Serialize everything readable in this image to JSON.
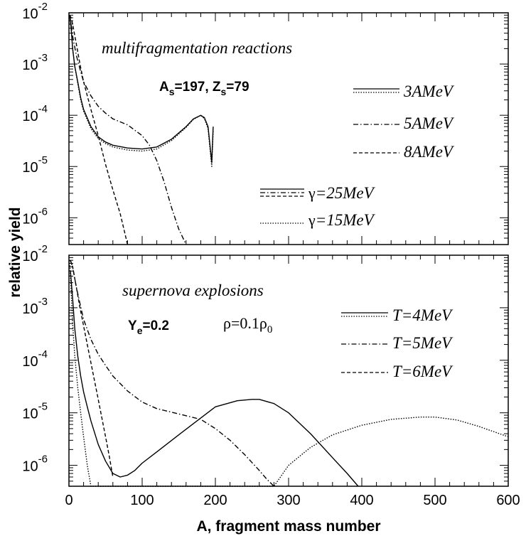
{
  "chart_data": [
    {
      "type": "line",
      "panel": "top",
      "title": "multifragmentation reactions",
      "annotation": {
        "base": "A",
        "sub": "s",
        "mid": "=197, Z",
        "sub2": "s",
        "end": "=79"
      },
      "xlim": [
        0,
        600
      ],
      "ylim": [
        3e-07,
        0.01
      ],
      "yscale": "log",
      "legend": {
        "energies": [
          "3AMeV",
          "5AMeV",
          "8AMeV"
        ],
        "gamma_prefix": "γ",
        "gammas": [
          "=25MeV",
          "=15MeV"
        ]
      },
      "series": [
        {
          "style": "solid",
          "x": [
            1,
            3,
            5,
            8,
            12,
            16,
            20,
            30,
            40,
            50,
            60,
            80,
            100,
            120,
            140,
            160,
            170,
            180,
            185,
            190,
            195,
            197
          ],
          "y": [
            0.009,
            0.005,
            0.002,
            0.0009,
            0.00045,
            0.00022,
            0.00013,
            6e-05,
            3.8e-05,
            3e-05,
            2.6e-05,
            2.3e-05,
            2.2e-05,
            2.4e-05,
            3.4e-05,
            6e-05,
            8.5e-05,
            0.0001,
            9e-05,
            6e-05,
            1.2e-05,
            6e-05
          ]
        },
        {
          "style": "dotted",
          "x": [
            1,
            3,
            5,
            8,
            12,
            16,
            20,
            30,
            40,
            50,
            60,
            80,
            100,
            120,
            140,
            160,
            170,
            180,
            185,
            190,
            195,
            197
          ],
          "y": [
            0.009,
            0.005,
            0.002,
            0.0009,
            0.00042,
            0.0002,
            0.00012,
            5.5e-05,
            3.5e-05,
            2.8e-05,
            2.4e-05,
            2.1e-05,
            2e-05,
            2.2e-05,
            3.2e-05,
            5.8e-05,
            8.3e-05,
            0.0001,
            8.5e-05,
            5.5e-05,
            1e-05,
            5e-05
          ]
        },
        {
          "style": "dashdot",
          "x": [
            1,
            3,
            5,
            10,
            15,
            20,
            30,
            40,
            50,
            60,
            80,
            100,
            110,
            120,
            130,
            140,
            150,
            160
          ],
          "y": [
            0.009,
            0.006,
            0.0035,
            0.0015,
            0.0008,
            0.00045,
            0.00024,
            0.00015,
            0.00011,
            8.5e-05,
            6.5e-05,
            4e-05,
            2.6e-05,
            1.3e-05,
            5e-06,
            1.6e-06,
            6e-07,
            3e-07
          ]
        },
        {
          "style": "dashed",
          "x": [
            1,
            3,
            5,
            10,
            15,
            20,
            30,
            40,
            50,
            60,
            70,
            75,
            80
          ],
          "y": [
            0.009,
            0.008,
            0.006,
            0.0025,
            0.001,
            0.00045,
            0.00013,
            4e-05,
            1.1e-05,
            3.5e-06,
            1.2e-06,
            6e-07,
            3e-07
          ]
        }
      ]
    },
    {
      "type": "line",
      "panel": "bottom",
      "title": "supernova explosions",
      "annotation": {
        "ye_base": "Y",
        "ye_sub": "e",
        "ye_val": "=0.2",
        "rho": "ρ=0.1ρ",
        "rho_sub": "0"
      },
      "xlim": [
        0,
        600
      ],
      "ylim": [
        4e-07,
        0.01
      ],
      "yscale": "log",
      "legend": [
        "T=4MeV",
        "T=5MeV",
        "T=6MeV"
      ],
      "series": [
        {
          "style": "solid",
          "x": [
            2,
            5,
            8,
            12,
            16,
            20,
            25,
            30,
            40,
            50,
            60,
            70,
            80,
            90,
            100,
            120,
            150,
            200,
            230,
            250,
            260,
            280,
            300,
            330,
            360,
            380,
            395
          ],
          "y": [
            0.005,
            0.0015,
            0.0004,
            0.00012,
            5e-05,
            2.5e-05,
            1.3e-05,
            7e-06,
            2.5e-06,
            1.2e-06,
            7e-07,
            6e-07,
            6.5e-07,
            8e-07,
            1.1e-06,
            1.8e-06,
            3.8e-06,
            1.3e-05,
            1.7e-05,
            1.8e-05,
            1.8e-05,
            1.5e-05,
            1e-05,
            4e-06,
            1.4e-06,
            7e-07,
            4e-07
          ]
        },
        {
          "style": "dotted",
          "x": [
            1,
            3,
            5,
            8,
            12,
            16,
            20,
            25,
            30,
            280,
            300,
            330,
            360,
            400,
            440,
            480,
            500,
            530,
            560,
            600
          ],
          "y": [
            0.008,
            0.002,
            0.0005,
            0.00012,
            3e-05,
            1e-05,
            3.5e-06,
            1e-06,
            4e-07,
            4e-07,
            1e-06,
            2.2e-06,
            3.8e-06,
            5.8e-06,
            7.5e-06,
            8.3e-06,
            8.3e-06,
            7.3e-06,
            5.5e-06,
            3.5e-06
          ]
        },
        {
          "style": "dashdot",
          "x": [
            2,
            5,
            10,
            15,
            20,
            30,
            40,
            50,
            60,
            80,
            100,
            120,
            150,
            180,
            200,
            220,
            240,
            260,
            270,
            280
          ],
          "y": [
            0.008,
            0.006,
            0.0025,
            0.0012,
            0.0006,
            0.00025,
            0.00013,
            8e-05,
            5e-05,
            2.6e-05,
            1.6e-05,
            1.2e-05,
            9.5e-06,
            7.5e-06,
            5e-06,
            3e-06,
            1.6e-06,
            8e-07,
            5.5e-07,
            4e-07
          ]
        },
        {
          "style": "dashed",
          "x": [
            2,
            5,
            10,
            15,
            20,
            25,
            30,
            40,
            50,
            55,
            60
          ],
          "y": [
            0.008,
            0.006,
            0.0025,
            0.001,
            0.00045,
            0.0002,
            9e-05,
            1.8e-05,
            3.5e-06,
            1.5e-06,
            6e-07
          ]
        }
      ]
    }
  ],
  "axes": {
    "ylabel": "relative yield",
    "xlabel": "A, fragment mass number",
    "xticks": [
      "0",
      "100",
      "200",
      "300",
      "400",
      "500",
      "600"
    ],
    "ytick_base": "10",
    "ytick_exps": [
      "-6",
      "-5",
      "-4",
      "-3",
      "-2"
    ]
  }
}
